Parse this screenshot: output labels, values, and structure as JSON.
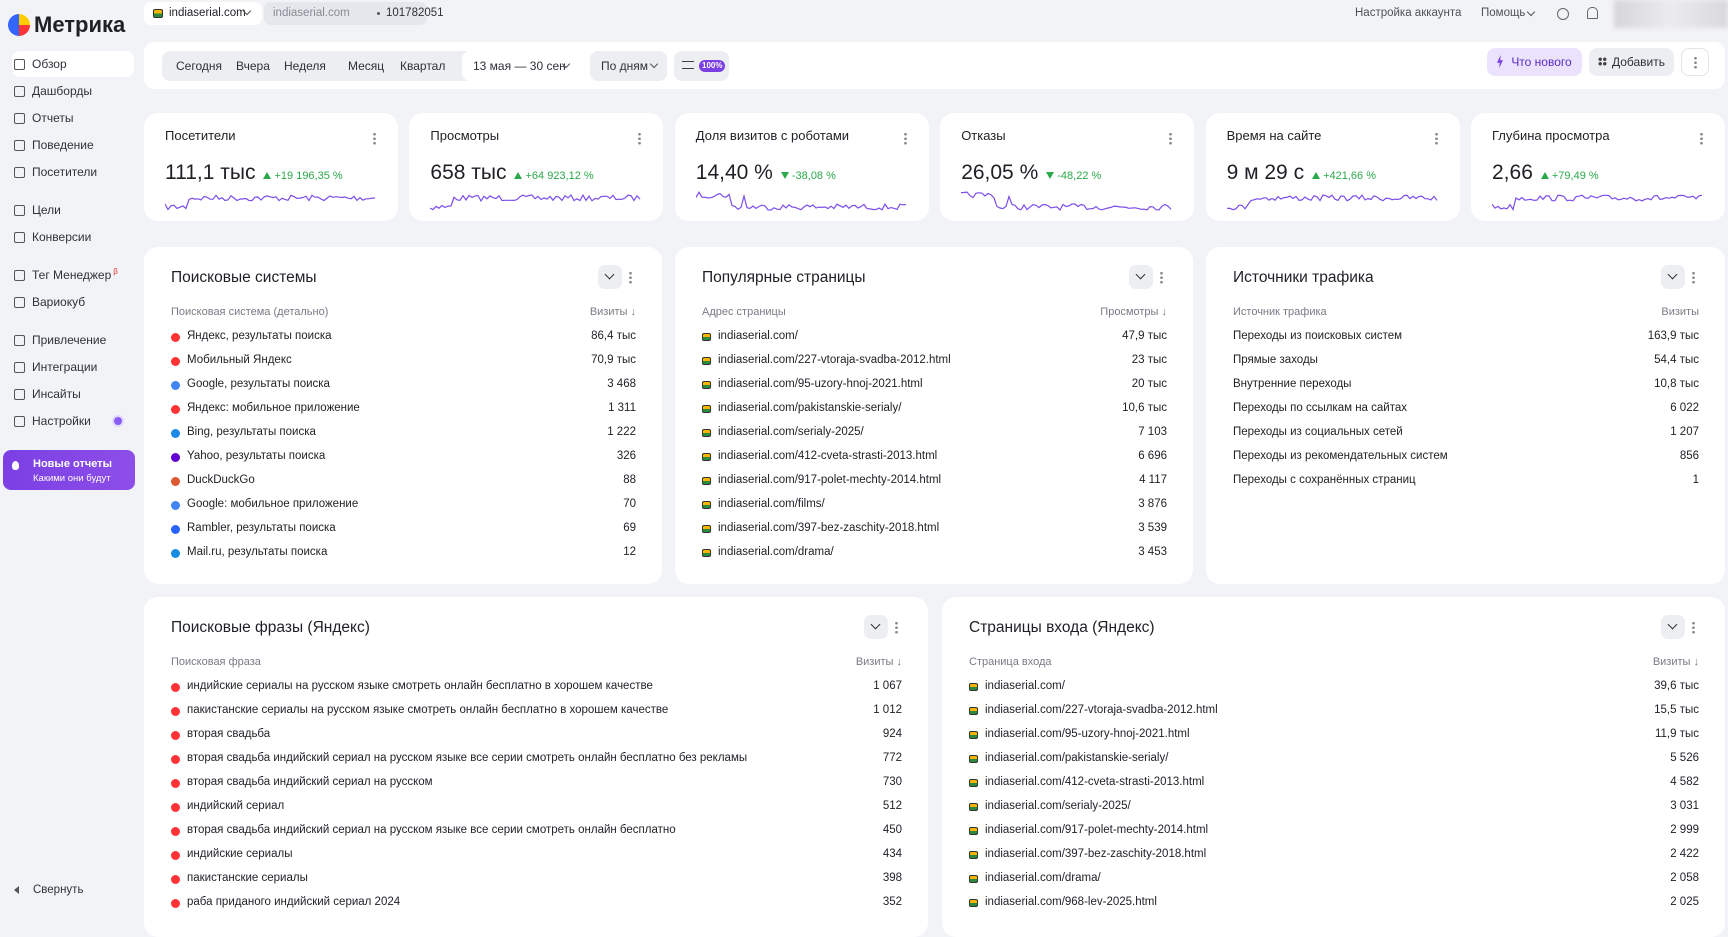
{
  "sidebar": {
    "logo": "Метрика",
    "nav": [
      [
        "Обзор",
        "Дашборды",
        "Отчеты",
        "Поведение",
        "Посетители"
      ],
      [
        "Цели",
        "Конверсии"
      ],
      [
        "Тег Менеджер",
        "Вариокуб"
      ],
      [
        "Привлечение",
        "Интеграции",
        "Инсайты",
        "Настройки"
      ]
    ],
    "beta": "β",
    "promo": {
      "title": "Новые отчеты",
      "subtitle": "Какими они будут"
    },
    "collapse": "Свернуть"
  },
  "topbar": {
    "site": "indiaserial.com",
    "counter_site": "indiaserial.com",
    "counter_id": "101782051",
    "account": "Настройка аккаунта",
    "help": "Помощь"
  },
  "toolbar": {
    "periods": [
      "Сегодня",
      "Вчера",
      "Неделя",
      "Месяц",
      "Квартал"
    ],
    "date_range": "13 мая — 30 сен",
    "grouping": "По дням",
    "sampling": "100%",
    "whats_new": "Что нового",
    "add": "Добавить"
  },
  "metrics": [
    {
      "title": "Посетители",
      "value": "111,1 тыс",
      "change": "+19 196,35 %",
      "direction": "up"
    },
    {
      "title": "Просмотры",
      "value": "658 тыс",
      "change": "+64 923,12 %",
      "direction": "up"
    },
    {
      "title": "Доля визитов с роботами",
      "value": "14,40 %",
      "change": "-38,08 %",
      "direction": "down"
    },
    {
      "title": "Отказы",
      "value": "26,05 %",
      "change": "-48,22 %",
      "direction": "down"
    },
    {
      "title": "Время на сайте",
      "value": "9 м 29 с",
      "change": "+421,66 %",
      "direction": "up"
    },
    {
      "title": "Глубина просмотра",
      "value": "2,66",
      "change": "+79,49 %",
      "direction": "up"
    }
  ],
  "widgets": [
    {
      "title": "Поисковые системы",
      "column_label": "Поисковая система (детально)",
      "column_value": "Визиты ↓",
      "rows": [
        [
          "Яндекс, результаты поиска",
          "86,4 тыс"
        ],
        [
          "Мобильный Яндекс",
          "70,9 тыс"
        ],
        [
          "Google, результаты поиска",
          "3 468"
        ],
        [
          "Яндекс: мобильное приложение",
          "1 311"
        ],
        [
          "Bing, результаты поиска",
          "1 222"
        ],
        [
          "Yahoo, результаты поиска",
          "326"
        ],
        [
          "DuckDuckGo",
          "88"
        ],
        [
          "Google: мобильное приложение",
          "70"
        ],
        [
          "Rambler, результаты поиска",
          "69"
        ],
        [
          "Mail.ru, результаты поиска",
          "12"
        ]
      ]
    },
    {
      "title": "Популярные страницы",
      "column_label": "Адрес страницы",
      "column_value": "Просмотры ↓",
      "rows": [
        [
          "indiaserial.com/",
          "47,9 тыс"
        ],
        [
          "indiaserial.com/227-vtoraja-svadba-2012.html",
          "23 тыс"
        ],
        [
          "indiaserial.com/95-uzory-hnoj-2021.html",
          "20 тыс"
        ],
        [
          "indiaserial.com/pakistanskie-serialy/",
          "10,6 тыс"
        ],
        [
          "indiaserial.com/serialy-2025/",
          "7 103"
        ],
        [
          "indiaserial.com/412-cveta-strasti-2013.html",
          "6 696"
        ],
        [
          "indiaserial.com/917-polet-mechty-2014.html",
          "4 117"
        ],
        [
          "indiaserial.com/films/",
          "3 876"
        ],
        [
          "indiaserial.com/397-bez-zaschity-2018.html",
          "3 539"
        ],
        [
          "indiaserial.com/drama/",
          "3 453"
        ]
      ]
    },
    {
      "title": "Источники трафика",
      "column_label": "Источник трафика",
      "column_value": "Визиты",
      "rows": [
        [
          "Переходы из поисковых систем",
          "163,9 тыс"
        ],
        [
          "Прямые заходы",
          "54,4 тыс"
        ],
        [
          "Внутренние переходы",
          "10,8 тыс"
        ],
        [
          "Переходы по ссылкам на сайтах",
          "6 022"
        ],
        [
          "Переходы из социальных сетей",
          "1 207"
        ],
        [
          "Переходы из рекомендательных систем",
          "856"
        ],
        [
          "Переходы с сохранённых страниц",
          "1"
        ]
      ]
    },
    {
      "title": "Поисковые фразы (Яндекс)",
      "column_label": "Поисковая фраза",
      "column_value": "Визиты ↓",
      "rows": [
        [
          "индийские сериалы на русском языке смотреть онлайн бесплатно в хорошем качестве",
          "1 067"
        ],
        [
          "пакистанские сериалы на русском языке смотреть онлайн бесплатно в хорошем качестве",
          "1 012"
        ],
        [
          "вторая свадьба",
          "924"
        ],
        [
          "вторая свадьба индийский сериал на русском языке все серии смотреть онлайн бесплатно без рекламы",
          "772"
        ],
        [
          "вторая свадьба индийский сериал на русском",
          "730"
        ],
        [
          "индийский сериал",
          "512"
        ],
        [
          "вторая свадьба индийский сериал на русском языке все серии смотреть онлайн бесплатно",
          "450"
        ],
        [
          "индийские сериалы",
          "434"
        ],
        [
          "пакистанские сериалы",
          "398"
        ],
        [
          "раба приданого индийский сериал 2024",
          "352"
        ]
      ]
    },
    {
      "title": "Страницы входа (Яндекс)",
      "column_label": "Страница входа",
      "column_value": "Визиты ↓",
      "rows": [
        [
          "indiaserial.com/",
          "39,6 тыс"
        ],
        [
          "indiaserial.com/227-vtoraja-svadba-2012.html",
          "15,5 тыс"
        ],
        [
          "indiaserial.com/95-uzory-hnoj-2021.html",
          "11,9 тыс"
        ],
        [
          "indiaserial.com/pakistanskie-serialy/",
          "5 526"
        ],
        [
          "indiaserial.com/412-cveta-strasti-2013.html",
          "4 582"
        ],
        [
          "indiaserial.com/serialy-2025/",
          "3 031"
        ],
        [
          "indiaserial.com/917-polet-mechty-2014.html",
          "2 999"
        ],
        [
          "indiaserial.com/397-bez-zaschity-2018.html",
          "2 422"
        ],
        [
          "indiaserial.com/drama/",
          "2 058"
        ],
        [
          "indiaserial.com/968-lev-2025.html",
          "2 025"
        ]
      ]
    }
  ]
}
